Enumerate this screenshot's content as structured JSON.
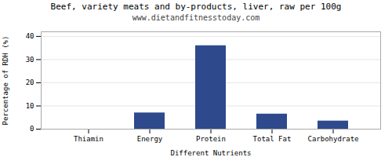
{
  "chart_data": {
    "type": "bar",
    "title": "Beef, variety meats and by-products, liver, raw per 100g",
    "subtitle": "www.dietandfitnesstoday.com",
    "xlabel": "Different Nutrients",
    "ylabel": "Percentage of RDH (%)",
    "categories": [
      "Thiamin",
      "Energy",
      "Protein",
      "Total Fat",
      "Carbohydrate"
    ],
    "values": [
      0,
      7.0,
      36.0,
      6.5,
      3.5
    ],
    "color": "#2e4a8c",
    "ylim": [
      0,
      42
    ],
    "yticks": [
      0,
      10,
      20,
      30,
      40
    ],
    "grid": true
  }
}
